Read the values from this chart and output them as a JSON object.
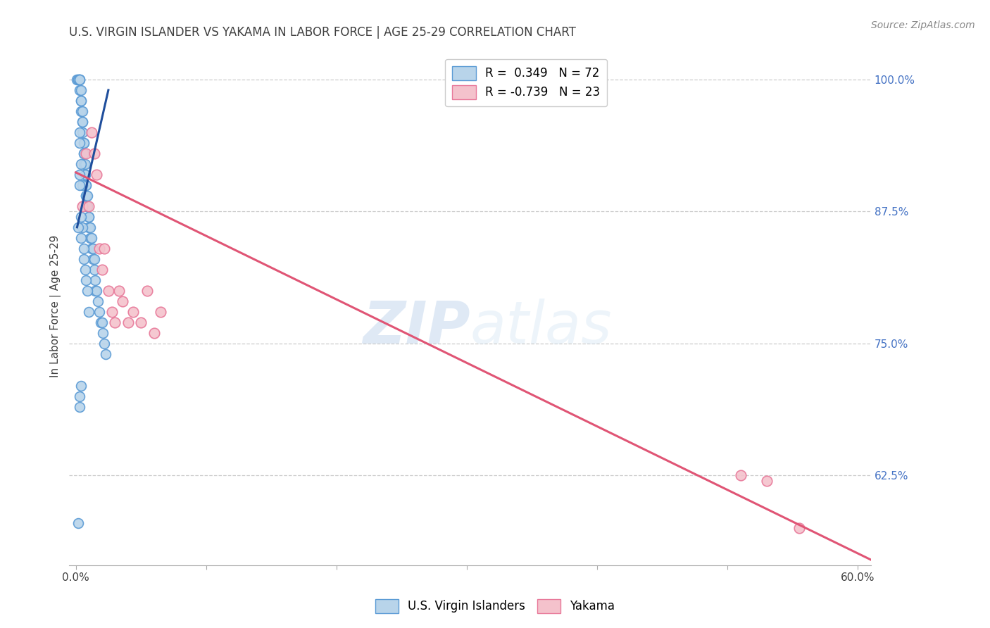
{
  "title": "U.S. VIRGIN ISLANDER VS YAKAMA IN LABOR FORCE | AGE 25-29 CORRELATION CHART",
  "source": "Source: ZipAtlas.com",
  "ylabel": "In Labor Force | Age 25-29",
  "xlim": [
    -0.005,
    0.61
  ],
  "ylim": [
    0.54,
    1.03
  ],
  "xticks": [
    0.0,
    0.1,
    0.2,
    0.3,
    0.4,
    0.5,
    0.6
  ],
  "xtick_labels": [
    "0.0%",
    "",
    "",
    "",
    "",
    "",
    "60.0%"
  ],
  "yticks_right": [
    0.625,
    0.75,
    0.875,
    1.0
  ],
  "ytick_labels_right": [
    "62.5%",
    "75.0%",
    "87.5%",
    "100.0%"
  ],
  "blue_color": "#b8d4ea",
  "blue_edge_color": "#5b9bd5",
  "pink_color": "#f4c2cc",
  "pink_edge_color": "#e8799a",
  "blue_line_color": "#1f4e9c",
  "pink_line_color": "#e05575",
  "legend_blue_label": "U.S. Virgin Islanders",
  "legend_pink_label": "Yakama",
  "R_blue": "0.349",
  "N_blue": 72,
  "R_pink": "-0.739",
  "N_pink": 23,
  "watermark_zip": "ZIP",
  "watermark_atlas": "atlas",
  "title_color": "#404040",
  "axis_label_color": "#404040",
  "tick_color_right": "#4472c4",
  "grid_color": "#cccccc",
  "blue_scatter_x": [
    0.001,
    0.002,
    0.002,
    0.003,
    0.003,
    0.003,
    0.003,
    0.004,
    0.004,
    0.004,
    0.004,
    0.005,
    0.005,
    0.005,
    0.005,
    0.006,
    0.006,
    0.006,
    0.006,
    0.006,
    0.007,
    0.007,
    0.007,
    0.007,
    0.008,
    0.008,
    0.008,
    0.008,
    0.009,
    0.009,
    0.009,
    0.01,
    0.01,
    0.01,
    0.011,
    0.011,
    0.012,
    0.012,
    0.013,
    0.013,
    0.014,
    0.014,
    0.015,
    0.015,
    0.016,
    0.017,
    0.018,
    0.019,
    0.02,
    0.021,
    0.022,
    0.023,
    0.003,
    0.004,
    0.005,
    0.006,
    0.007,
    0.008,
    0.009,
    0.01,
    0.004,
    0.005,
    0.006,
    0.003,
    0.004,
    0.003,
    0.002,
    0.004,
    0.002,
    0.003,
    0.003,
    0.003
  ],
  "blue_scatter_y": [
    1.0,
    1.0,
    1.0,
    1.0,
    1.0,
    1.0,
    0.99,
    0.99,
    0.98,
    0.98,
    0.97,
    0.97,
    0.96,
    0.96,
    0.95,
    0.94,
    0.94,
    0.93,
    0.93,
    0.92,
    0.92,
    0.91,
    0.91,
    0.9,
    0.9,
    0.9,
    0.89,
    0.89,
    0.89,
    0.88,
    0.88,
    0.87,
    0.87,
    0.86,
    0.86,
    0.85,
    0.85,
    0.84,
    0.84,
    0.83,
    0.83,
    0.82,
    0.81,
    0.8,
    0.8,
    0.79,
    0.78,
    0.77,
    0.77,
    0.76,
    0.75,
    0.74,
    0.94,
    0.92,
    0.9,
    0.83,
    0.82,
    0.81,
    0.8,
    0.78,
    0.87,
    0.86,
    0.84,
    0.7,
    0.71,
    0.69,
    0.58,
    0.85,
    0.86,
    0.95,
    0.91,
    0.9
  ],
  "pink_scatter_x": [
    0.005,
    0.008,
    0.01,
    0.012,
    0.014,
    0.016,
    0.018,
    0.02,
    0.022,
    0.025,
    0.028,
    0.03,
    0.033,
    0.036,
    0.04,
    0.044,
    0.05,
    0.055,
    0.06,
    0.065,
    0.51,
    0.53,
    0.555
  ],
  "pink_scatter_y": [
    0.88,
    0.93,
    0.88,
    0.95,
    0.93,
    0.91,
    0.84,
    0.82,
    0.84,
    0.8,
    0.78,
    0.77,
    0.8,
    0.79,
    0.77,
    0.78,
    0.77,
    0.8,
    0.76,
    0.78,
    0.625,
    0.62,
    0.575
  ],
  "blue_line_x": [
    0.001,
    0.025
  ],
  "blue_line_y": [
    0.86,
    0.99
  ],
  "pink_line_x": [
    0.0,
    0.61
  ],
  "pink_line_y": [
    0.912,
    0.545
  ]
}
